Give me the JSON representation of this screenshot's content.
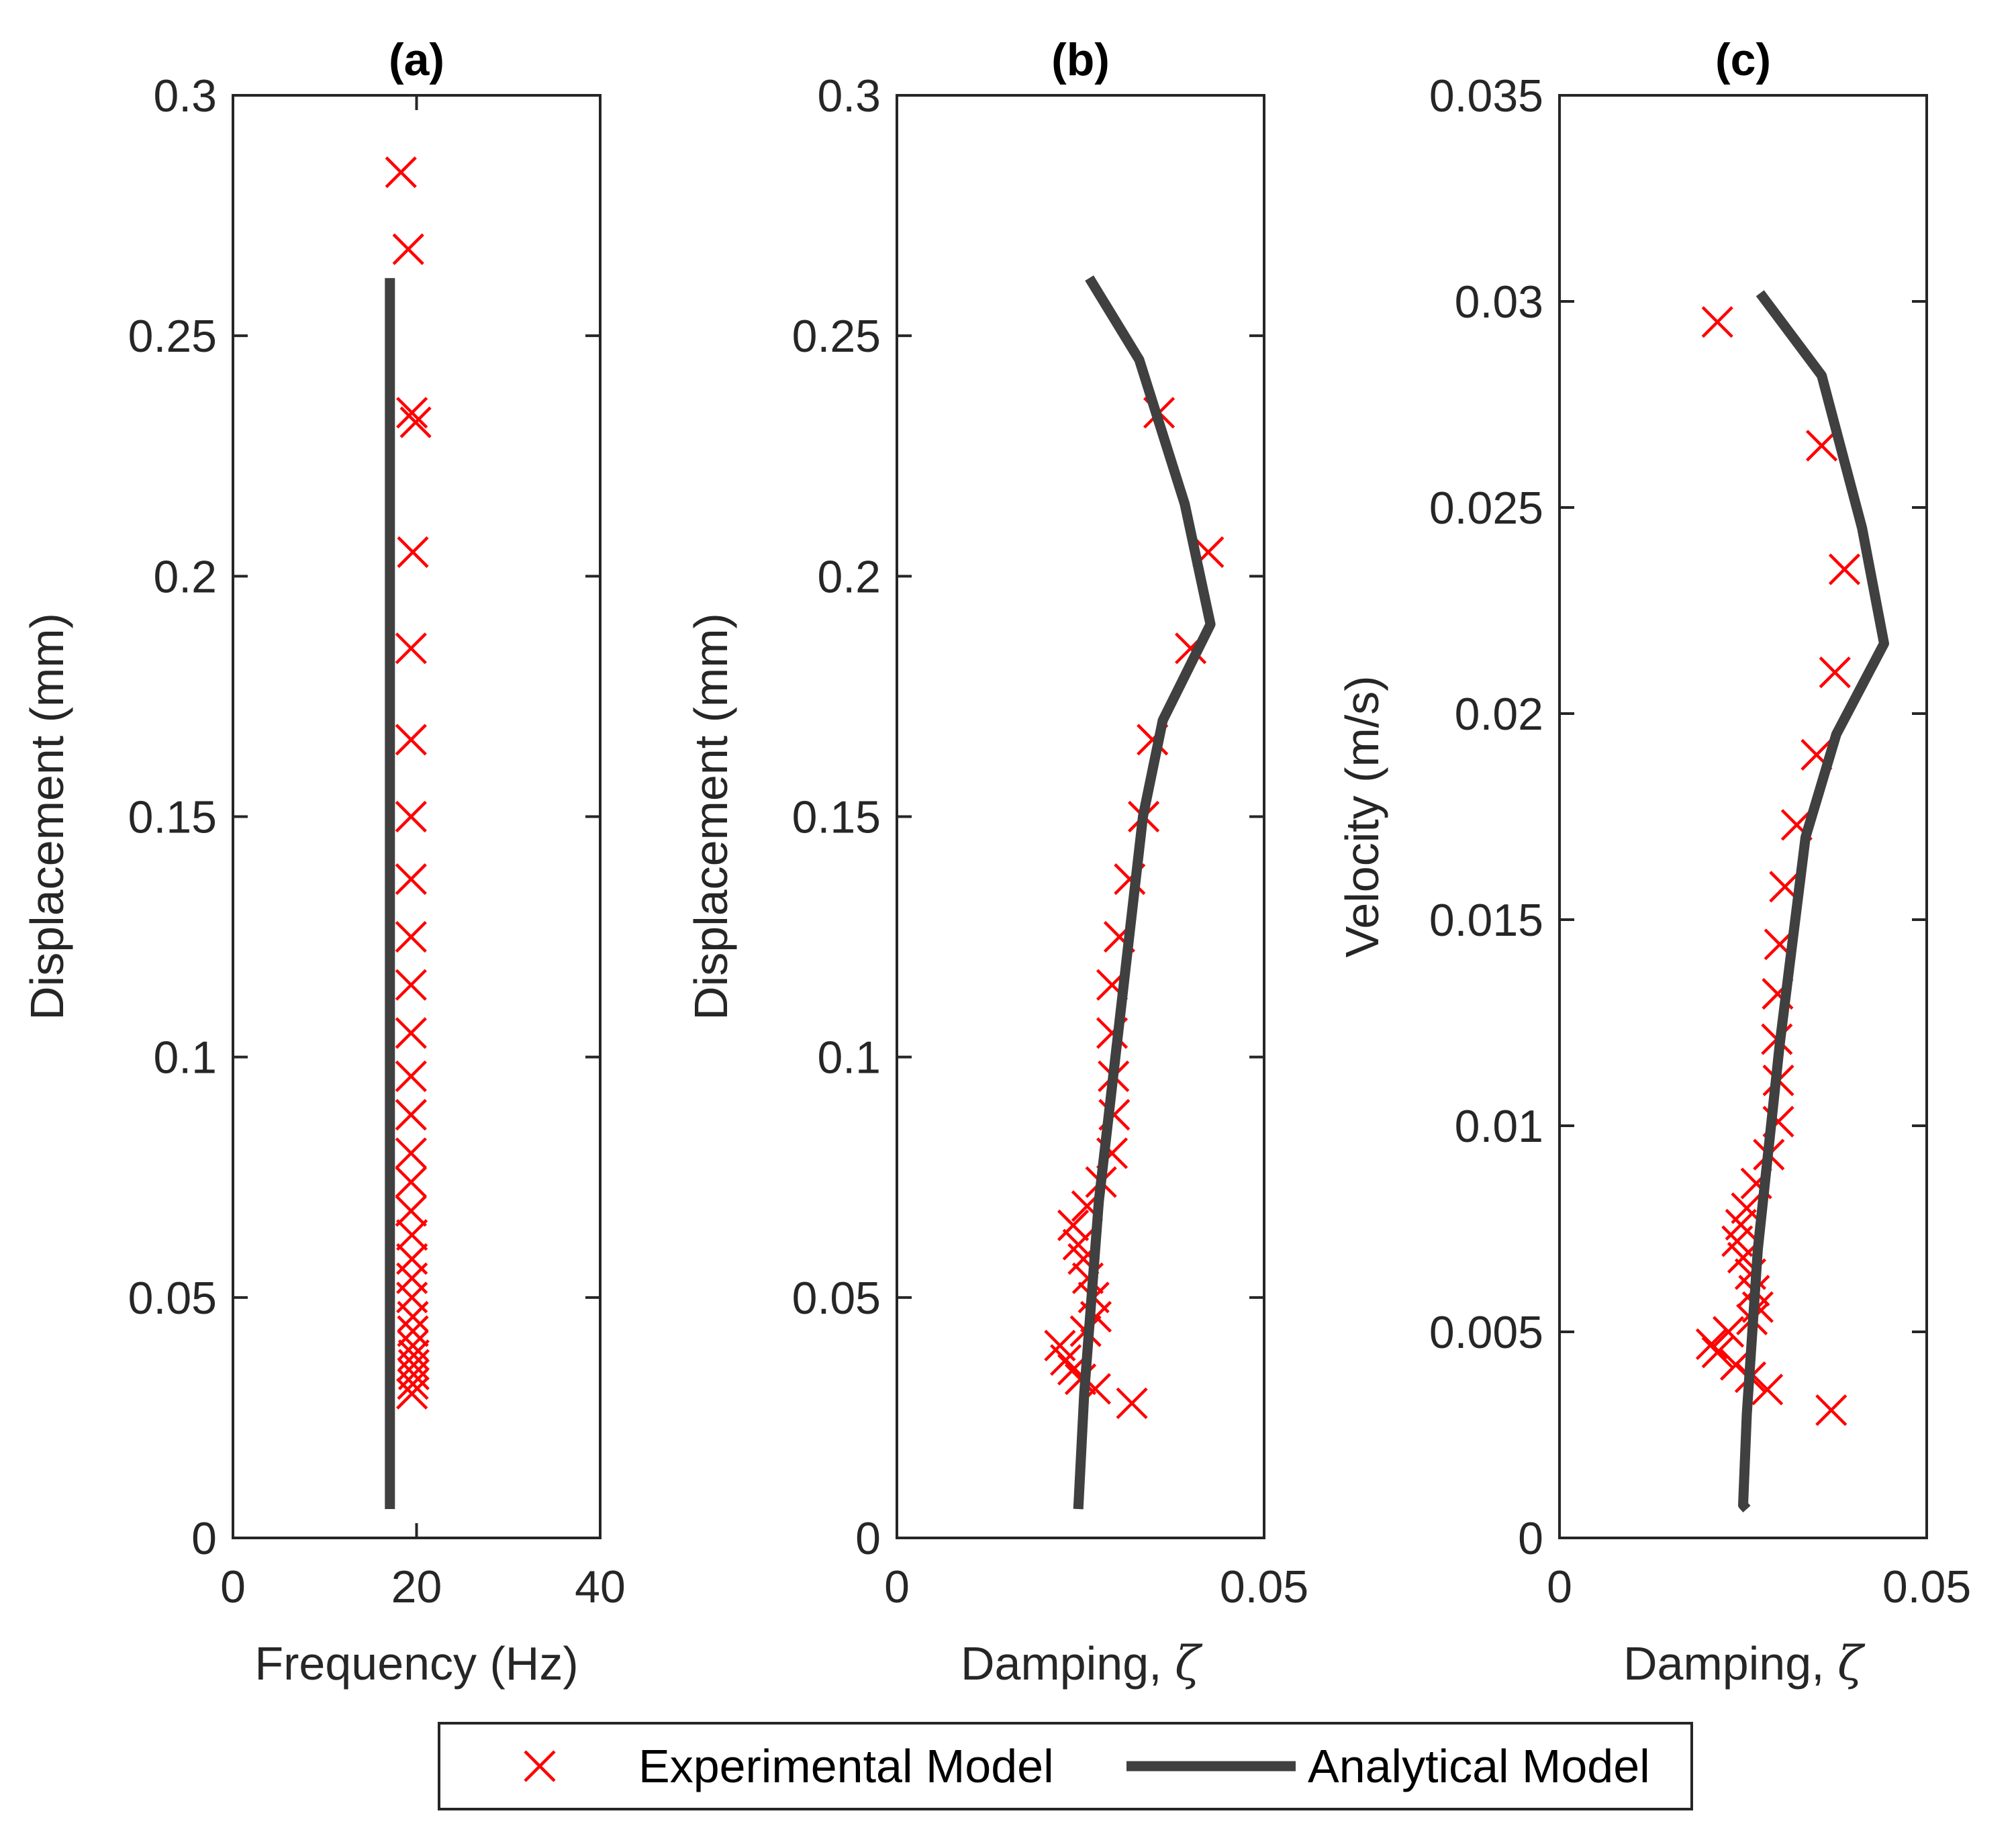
{
  "colors": {
    "experimental": "#ff0000",
    "analytical": "#404040",
    "axis": "#262626"
  },
  "legend": {
    "experimental_label": "Experimental Model",
    "analytical_label": "Analytical Model"
  },
  "chart_data": [
    {
      "type": "scatter",
      "title": "(a)",
      "xlabel": "Frequency (Hz)",
      "ylabel": "Displacement (mm)",
      "xlim": [
        0,
        40
      ],
      "ylim": [
        0,
        0.3
      ],
      "xticks": [
        0,
        20,
        40
      ],
      "xtick_labels": [
        "0",
        "20",
        "40"
      ],
      "yticks": [
        0,
        0.05,
        0.1,
        0.15,
        0.2,
        0.25,
        0.3
      ],
      "ytick_labels": [
        "0",
        "0.05",
        "0.1",
        "0.15",
        "0.2",
        "0.25",
        "0.3"
      ],
      "series": [
        {
          "name": "Experimental Model",
          "style": "marker-x",
          "points": [
            [
              18.3,
              0.284
            ],
            [
              19.1,
              0.268
            ],
            [
              19.5,
              0.234
            ],
            [
              19.9,
              0.232
            ],
            [
              19.6,
              0.205
            ],
            [
              19.4,
              0.185
            ],
            [
              19.4,
              0.166
            ],
            [
              19.4,
              0.15
            ],
            [
              19.4,
              0.137
            ],
            [
              19.4,
              0.125
            ],
            [
              19.4,
              0.115
            ],
            [
              19.4,
              0.105
            ],
            [
              19.4,
              0.096
            ],
            [
              19.4,
              0.088
            ],
            [
              19.4,
              0.08
            ],
            [
              19.4,
              0.074
            ],
            [
              19.4,
              0.068
            ],
            [
              19.5,
              0.063
            ],
            [
              19.5,
              0.058
            ],
            [
              19.5,
              0.054
            ],
            [
              19.5,
              0.05
            ],
            [
              19.6,
              0.046
            ],
            [
              19.6,
              0.043
            ],
            [
              19.6,
              0.04
            ],
            [
              19.7,
              0.038
            ],
            [
              19.7,
              0.036
            ],
            [
              19.7,
              0.034
            ],
            [
              19.6,
              0.032
            ],
            [
              19.5,
              0.03
            ]
          ]
        },
        {
          "name": "Analytical Model",
          "style": "line",
          "points": [
            [
              17.1,
              0.006
            ],
            [
              17.1,
              0.262
            ]
          ]
        }
      ]
    },
    {
      "type": "scatter",
      "title": "(b)",
      "xlabel": "Damping, ",
      "xlabel_symbol": "ζ",
      "ylabel": "Displacement (mm)",
      "xlim": [
        0,
        0.05
      ],
      "ylim": [
        0,
        0.3
      ],
      "xticks": [
        0,
        0.05
      ],
      "xtick_labels": [
        "0",
        "0.05"
      ],
      "yticks": [
        0,
        0.05,
        0.1,
        0.15,
        0.2,
        0.25,
        0.3
      ],
      "ytick_labels": [
        "0",
        "0.05",
        "0.1",
        "0.15",
        "0.2",
        "0.25",
        "0.3"
      ],
      "series": [
        {
          "name": "Experimental Model",
          "style": "marker-x",
          "points": [
            [
              0.0357,
              0.234
            ],
            [
              0.0424,
              0.205
            ],
            [
              0.04,
              0.185
            ],
            [
              0.0348,
              0.166
            ],
            [
              0.0336,
              0.15
            ],
            [
              0.0317,
              0.137
            ],
            [
              0.0303,
              0.125
            ],
            [
              0.0293,
              0.115
            ],
            [
              0.0293,
              0.105
            ],
            [
              0.0295,
              0.096
            ],
            [
              0.0296,
              0.088
            ],
            [
              0.0293,
              0.08
            ],
            [
              0.0278,
              0.074
            ],
            [
              0.0259,
              0.069
            ],
            [
              0.024,
              0.065
            ],
            [
              0.0247,
              0.061
            ],
            [
              0.0254,
              0.058
            ],
            [
              0.026,
              0.054
            ],
            [
              0.0268,
              0.05
            ],
            [
              0.0271,
              0.046
            ],
            [
              0.0257,
              0.043
            ],
            [
              0.0222,
              0.04
            ],
            [
              0.023,
              0.037
            ],
            [
              0.024,
              0.035
            ],
            [
              0.025,
              0.033
            ],
            [
              0.027,
              0.031
            ],
            [
              0.032,
              0.028
            ]
          ]
        },
        {
          "name": "Analytical Model",
          "style": "line",
          "points": [
            [
              0.0247,
              0.006
            ],
            [
              0.0255,
              0.03
            ],
            [
              0.0275,
              0.07
            ],
            [
              0.0305,
              0.11
            ],
            [
              0.0335,
              0.15
            ],
            [
              0.0362,
              0.17
            ],
            [
              0.0427,
              0.19
            ],
            [
              0.0392,
              0.215
            ],
            [
              0.033,
              0.245
            ],
            [
              0.0262,
              0.262
            ]
          ]
        }
      ]
    },
    {
      "type": "scatter",
      "title": "(c)",
      "xlabel": "Damping, ",
      "xlabel_symbol": "ζ",
      "ylabel": "Velocity (m/s)",
      "xlim": [
        0,
        0.05
      ],
      "ylim": [
        0,
        0.035
      ],
      "xticks": [
        0,
        0.05
      ],
      "xtick_labels": [
        "0",
        "0.05"
      ],
      "yticks": [
        0,
        0.005,
        0.01,
        0.015,
        0.02,
        0.025,
        0.03,
        0.035
      ],
      "ytick_labels": [
        "0",
        "0.005",
        "0.01",
        "0.015",
        "0.02",
        "0.025",
        "0.03",
        "0.035"
      ],
      "series": [
        {
          "name": "Experimental Model",
          "style": "marker-x",
          "points": [
            [
              0.0215,
              0.0295
            ],
            [
              0.0357,
              0.0265
            ],
            [
              0.0388,
              0.0235
            ],
            [
              0.0375,
              0.021
            ],
            [
              0.035,
              0.019
            ],
            [
              0.0323,
              0.0173
            ],
            [
              0.0307,
              0.0158
            ],
            [
              0.03,
              0.0144
            ],
            [
              0.0297,
              0.0132
            ],
            [
              0.0296,
              0.0121
            ],
            [
              0.0298,
              0.0111
            ],
            [
              0.0298,
              0.0101
            ],
            [
              0.0285,
              0.0093
            ],
            [
              0.0268,
              0.0086
            ],
            [
              0.0255,
              0.008
            ],
            [
              0.0247,
              0.0076
            ],
            [
              0.0242,
              0.0072
            ],
            [
              0.025,
              0.0068
            ],
            [
              0.026,
              0.0064
            ],
            [
              0.0265,
              0.006
            ],
            [
              0.027,
              0.0056
            ],
            [
              0.0262,
              0.0053
            ],
            [
              0.023,
              0.005
            ],
            [
              0.0207,
              0.0047
            ],
            [
              0.0215,
              0.0045
            ],
            [
              0.024,
              0.0042
            ],
            [
              0.026,
              0.0039
            ],
            [
              0.0283,
              0.0036
            ],
            [
              0.037,
              0.0031
            ]
          ]
        },
        {
          "name": "Analytical Model",
          "style": "line",
          "points": [
            [
              0.0255,
              0.0007
            ],
            [
              0.025,
              0.0008
            ],
            [
              0.0255,
              0.003
            ],
            [
              0.027,
              0.007
            ],
            [
              0.03,
              0.012
            ],
            [
              0.0335,
              0.017
            ],
            [
              0.0377,
              0.0195
            ],
            [
              0.0442,
              0.0217
            ],
            [
              0.0412,
              0.0245
            ],
            [
              0.0357,
              0.0282
            ],
            [
              0.0273,
              0.0302
            ]
          ]
        }
      ]
    }
  ]
}
